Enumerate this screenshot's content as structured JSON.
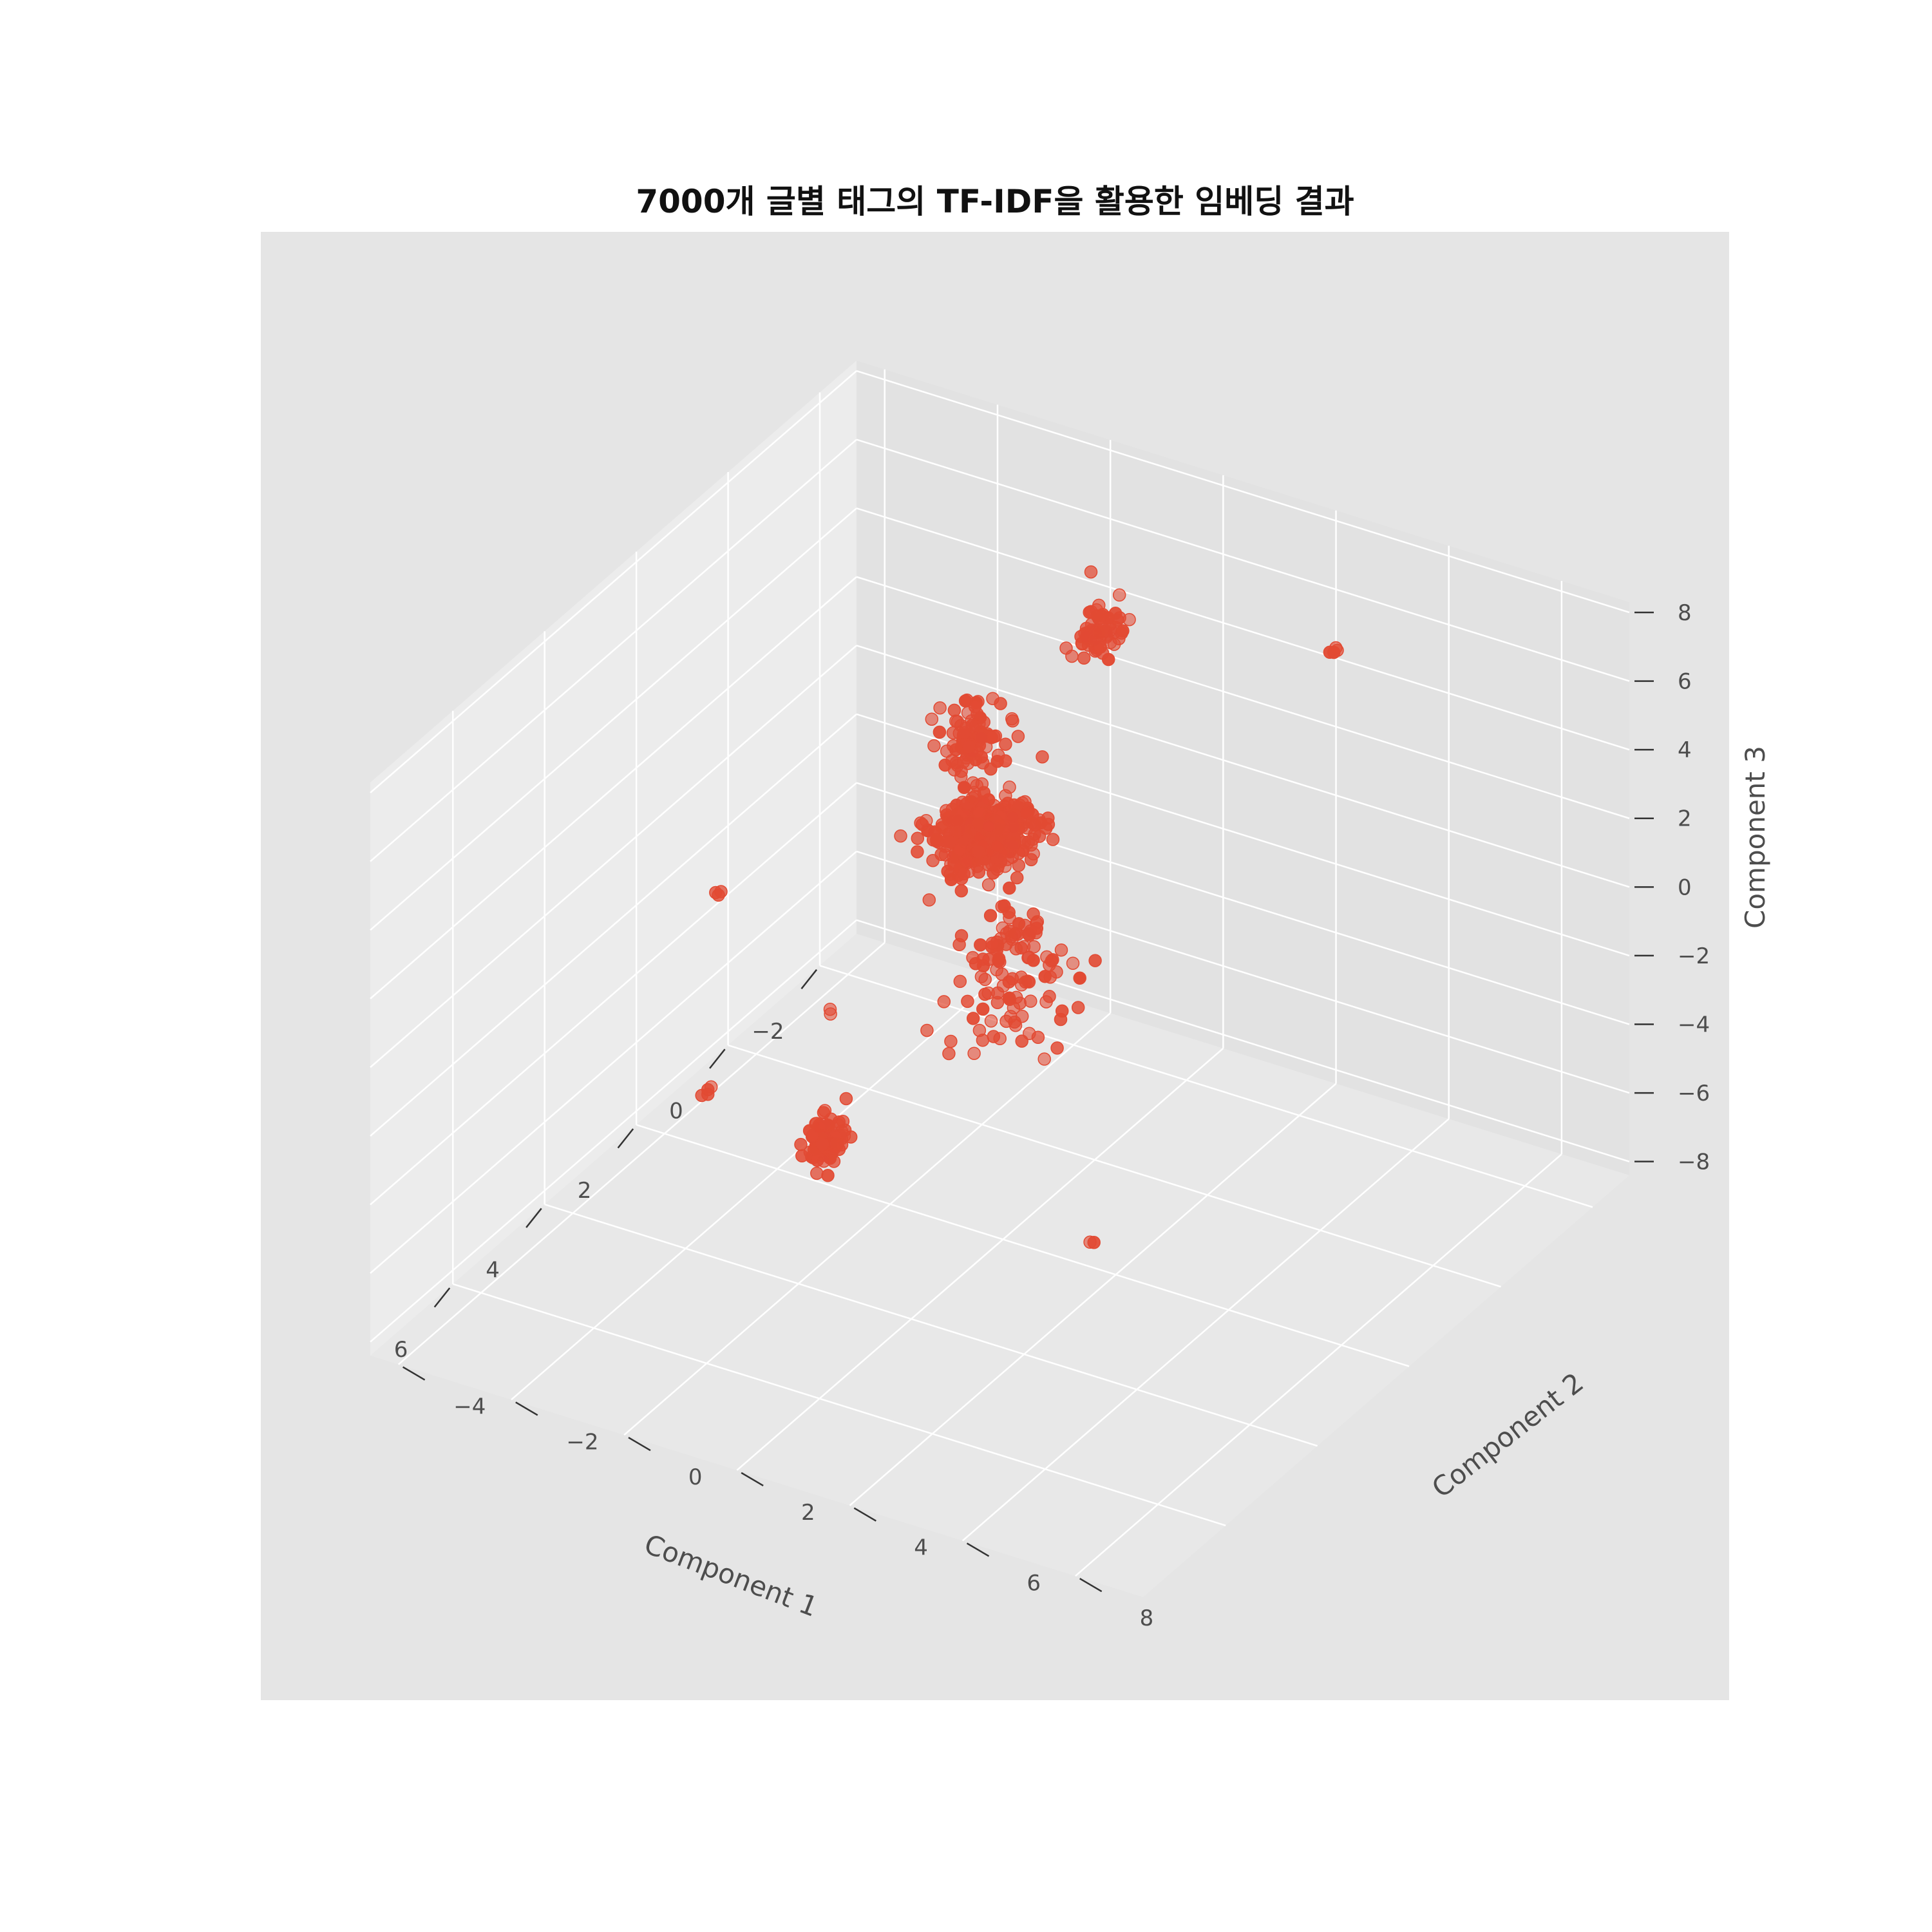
{
  "chart_data": {
    "type": "scatter",
    "projection": "3d",
    "title": "7000개 글별 태그의 TF-IDF을 활용한 임베딩 결과",
    "xlabel": "Component 1",
    "ylabel": "Component 2",
    "zlabel": "Component 3",
    "xticks": [
      "−2",
      "0",
      "2",
      "4",
      "6"
    ],
    "yticks": [
      "−4",
      "−2",
      "0",
      "2",
      "4",
      "6",
      "8"
    ],
    "zticks": [
      "−8",
      "−6",
      "−4",
      "−2",
      "0",
      "2",
      "4",
      "6",
      "8"
    ],
    "xlim": [
      -2.8,
      7.8
    ],
    "ylim": [
      -4.5,
      9.2
    ],
    "zlim": [
      -8.4,
      8.3
    ],
    "grid": true,
    "point_color": "#e24a33",
    "pane_color": "#e5e5e5",
    "grid_color": "#ffffff",
    "clusters": [
      {
        "center": [
          0.2,
          0.2,
          0.4
        ],
        "spread": [
          0.35,
          0.35,
          0.35
        ],
        "count": 420
      },
      {
        "center": [
          -1.5,
          -0.5,
          -6.5
        ],
        "spread": [
          0.55,
          0.45,
          0.7
        ],
        "count": 70
      },
      {
        "center": [
          -1.0,
          -0.3,
          -4.2
        ],
        "spread": [
          0.35,
          0.3,
          0.5
        ],
        "count": 40
      },
      {
        "center": [
          0.7,
          0.4,
          3.9
        ],
        "spread": [
          0.2,
          0.2,
          0.5
        ],
        "count": 90
      },
      {
        "center": [
          -0.8,
          1.5,
          5.8
        ],
        "spread": [
          0.2,
          0.2,
          0.3
        ],
        "count": 60
      },
      {
        "center": [
          6.6,
          2.6,
          0.1
        ],
        "spread": [
          0.15,
          0.15,
          0.3
        ],
        "count": 90
      },
      {
        "center": [
          6.6,
          0.5,
          0.5
        ],
        "spread": [
          0.05,
          0.05,
          0.05
        ],
        "count": 4
      },
      {
        "center": [
          3.8,
          -1.6,
          1.9
        ],
        "spread": [
          0.06,
          0.06,
          0.06
        ],
        "count": 3
      },
      {
        "center": [
          -0.5,
          5.9,
          7.9
        ],
        "spread": [
          0.05,
          0.05,
          0.05
        ],
        "count": 4
      },
      {
        "center": [
          7.2,
          3.2,
          4.9
        ],
        "spread": [
          0.05,
          0.05,
          0.05
        ],
        "count": 2
      },
      {
        "center": [
          2.5,
          4.0,
          -7.0
        ],
        "spread": [
          0.05,
          0.05,
          0.05
        ],
        "count": 2
      }
    ]
  }
}
